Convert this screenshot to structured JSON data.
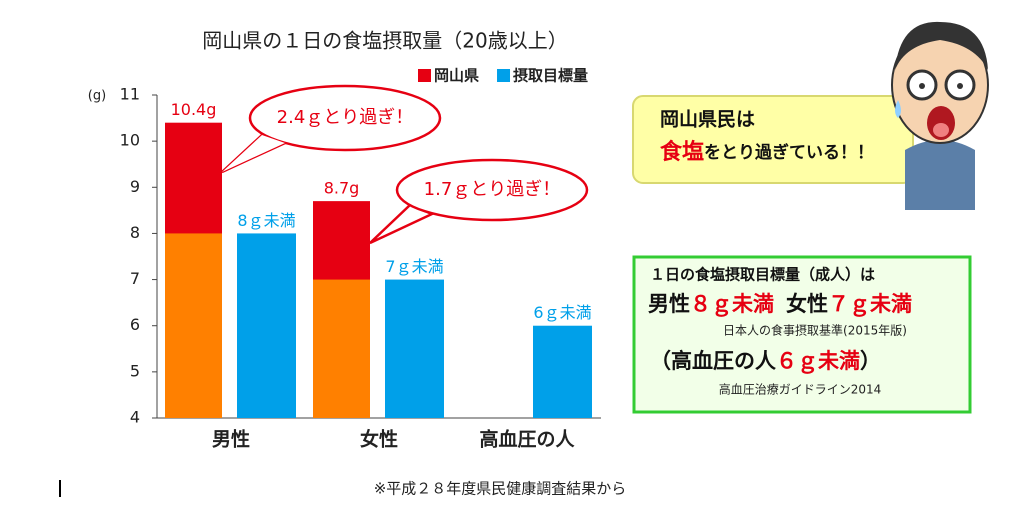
{
  "chart_data": {
    "type": "bar",
    "title": "岡山県の１日の食塩摂取量（20歳以上）",
    "y_label": "(g)",
    "categories": [
      "男性",
      "女性",
      "高血圧の人"
    ],
    "series": [
      {
        "name": "岡山県",
        "color": "#e60012",
        "values": [
          10.4,
          8.7,
          null
        ],
        "value_labels": [
          "10.4g",
          "8.7g",
          null
        ]
      },
      {
        "name": "摂取目標量",
        "color": "#00a0e9",
        "values": [
          8,
          7,
          6
        ],
        "value_labels": [
          "8ｇ未満",
          "7ｇ未満",
          "6ｇ未満"
        ]
      }
    ],
    "within_target_color": "#ff8000",
    "ylim": [
      4,
      11
    ],
    "yticks": [
      4,
      5,
      6,
      7,
      8,
      9,
      10,
      11
    ],
    "grid": false,
    "legend": "top-right",
    "annotations": [
      "2.4ｇとり過ぎ！",
      "1.7ｇとり過ぎ！"
    ]
  },
  "note": {
    "line1": "岡山県民は",
    "highlight": "食塩",
    "rest": "をとり過ぎている！！"
  },
  "goal": {
    "heading": "１日の食塩摂取目標量（成人）は",
    "male": "男性",
    "male_value": "８ｇ未満",
    "female": "女性",
    "female_value": "７ｇ未満",
    "source1": "日本人の食事摂取基準(2015年版)",
    "hyper_open": "（高血圧の人",
    "hyper_value": "６ｇ未満",
    "hyper_close": "）",
    "source2": "高血圧治療ガイドライン2014"
  },
  "footnote": "※平成２８年度県民健康調査結果から"
}
